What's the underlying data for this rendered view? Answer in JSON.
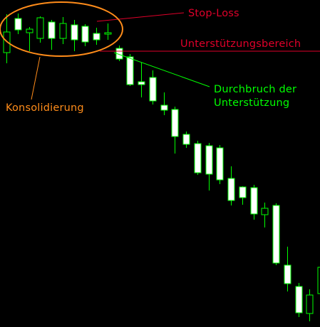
{
  "chart_data": {
    "type": "candlestick",
    "title": "",
    "xlabel": "",
    "ylabel": "",
    "ylim": [
      0,
      460
    ],
    "candles": [
      {
        "o": 386,
        "c": 415,
        "h": 440,
        "l": 371
      },
      {
        "o": 434,
        "c": 418,
        "h": 441,
        "l": 412
      },
      {
        "o": 414,
        "c": 419,
        "h": 422,
        "l": 388
      },
      {
        "o": 406,
        "c": 435,
        "h": 437,
        "l": 400
      },
      {
        "o": 429,
        "c": 406,
        "h": 432,
        "l": 390
      },
      {
        "o": 406,
        "c": 427,
        "h": 436,
        "l": 398
      },
      {
        "o": 425,
        "c": 404,
        "h": 432,
        "l": 388
      },
      {
        "o": 423,
        "c": 401,
        "h": 426,
        "l": 395
      },
      {
        "o": 413,
        "c": 404,
        "h": 421,
        "l": 397
      },
      {
        "o": 412,
        "c": 414,
        "h": 427,
        "l": 404
      },
      {
        "o": 392,
        "c": 377,
        "h": 396,
        "l": 374
      },
      {
        "o": 380,
        "c": 341,
        "h": 384,
        "l": 339
      },
      {
        "o": 345,
        "c": 341,
        "h": 372,
        "l": 323
      },
      {
        "o": 351,
        "c": 318,
        "h": 361,
        "l": 313
      },
      {
        "o": 312,
        "c": 305,
        "h": 330,
        "l": 298
      },
      {
        "o": 306,
        "c": 268,
        "h": 310,
        "l": 244
      },
      {
        "o": 271,
        "c": 257,
        "h": 275,
        "l": 252
      },
      {
        "o": 258,
        "c": 217,
        "h": 262,
        "l": 214
      },
      {
        "o": 255,
        "c": 215,
        "h": 259,
        "l": 192
      },
      {
        "o": 252,
        "c": 207,
        "h": 256,
        "l": 201
      },
      {
        "o": 209,
        "c": 178,
        "h": 226,
        "l": 171
      },
      {
        "o": 197,
        "c": 182,
        "h": 198,
        "l": 172
      },
      {
        "o": 196,
        "c": 159,
        "h": 200,
        "l": 151
      },
      {
        "o": 158,
        "c": 167,
        "h": 175,
        "l": 140
      },
      {
        "o": 171,
        "c": 90,
        "h": 174,
        "l": 87
      },
      {
        "o": 87,
        "c": 61,
        "h": 113,
        "l": 50
      },
      {
        "o": 57,
        "c": 20,
        "h": 62,
        "l": 14
      },
      {
        "o": 19,
        "c": 45,
        "h": 53,
        "l": 8
      },
      {
        "o": 47,
        "c": 84,
        "h": 90,
        "l": 44
      }
    ],
    "support_level": 388,
    "stop_loss_level": 430,
    "annotations": {
      "stop_loss": "Stop-Loss",
      "support_zone": "Unterstützungsbereich",
      "breakout_line1": "Durchbruch der",
      "breakout_line2": "Unterstützung",
      "consolidation": "Konsolidierung"
    },
    "colors": {
      "background": "#000000",
      "candle_outline": "#00ff00",
      "bull_body": "#000000",
      "bear_body": "#ffffff",
      "support_line": "#e0002a",
      "stop_loss": "#e0002a",
      "breakout": "#00ff00",
      "consolidation": "#ff8c1a"
    }
  }
}
